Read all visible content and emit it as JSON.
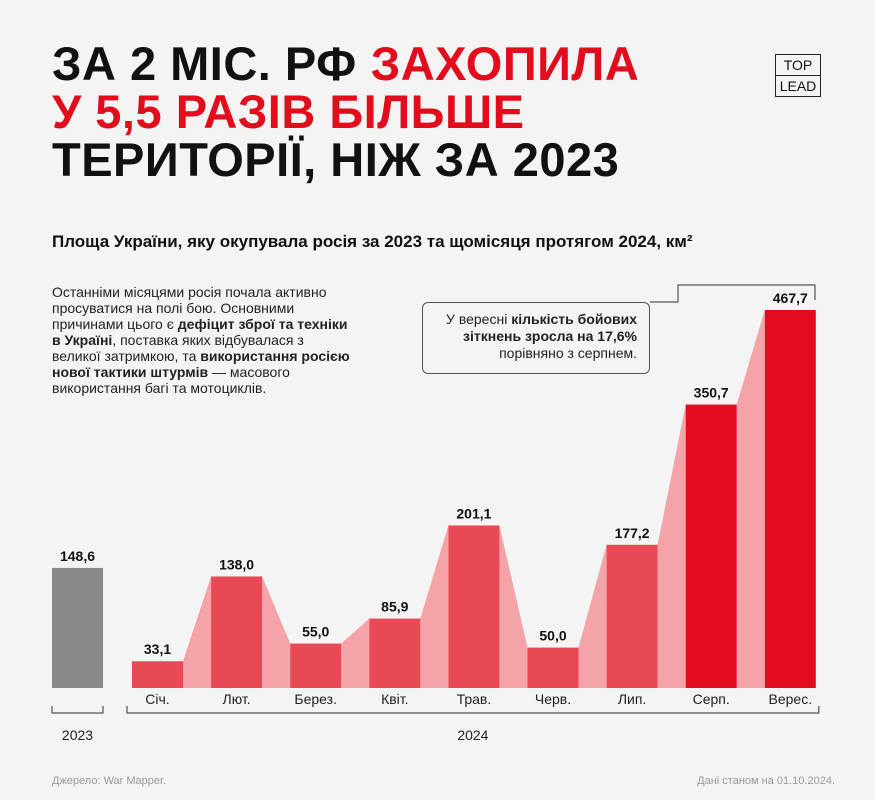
{
  "chart_data": {
    "type": "bar",
    "title_lines": [
      [
        {
          "text": "ЗА 2 МІС. РФ",
          "red": false
        },
        {
          "text": "ЗАХОПИЛА",
          "red": true
        }
      ],
      [
        {
          "text": "У 5,5 РАЗІВ БІЛЬШЕ",
          "red": true
        }
      ],
      [
        {
          "text": "ТЕРИТОРІЇ, НІЖ ЗА 2023",
          "red": false
        }
      ]
    ],
    "logo": [
      "TOP",
      "LEAD"
    ],
    "subtitle": "Площа України, яку окупувала росія за 2023 та щомісяця протягом 2024, км²",
    "paragraph": [
      {
        "text": "Останніми місяцями росія почала активно просуватися на полі бою. Основними причинами цього є ",
        "bold": false
      },
      {
        "text": "дефіцит зброї та техніки в Україні",
        "bold": true
      },
      {
        "text": ", поставка яких відбувалася з великої затримкою, та ",
        "bold": false
      },
      {
        "text": "використання росією нової тактики штурмів",
        "bold": true
      },
      {
        "text": " — масового використання багі та мотоциклів.",
        "bold": false
      }
    ],
    "annotation": [
      {
        "text": "У вересні ",
        "bold": false
      },
      {
        "text": "кількість бойових зіткнень зросла на 17,6%",
        "bold": true
      },
      {
        "text": " порівняно з серпнем.",
        "bold": false
      }
    ],
    "series": [
      {
        "name": "2023",
        "color": "#8a8a8a",
        "categories": [
          null
        ],
        "values": [
          148.6
        ],
        "value_labels": [
          "148,6"
        ]
      },
      {
        "name": "2024",
        "colors": [
          "#e84a55",
          "#e84a55",
          "#e84a55",
          "#e84a55",
          "#e84a55",
          "#e84a55",
          "#e84a55",
          "#e20c1c",
          "#e20c1c"
        ],
        "categories": [
          "Січ.",
          "Лют.",
          "Берез.",
          "Квіт.",
          "Трав.",
          "Черв.",
          "Лип.",
          "Серп.",
          "Верес."
        ],
        "values": [
          33.1,
          138.0,
          55.0,
          85.9,
          201.1,
          50.0,
          177.2,
          350.7,
          467.7
        ],
        "value_labels": [
          "33,1",
          "138,0",
          "55,0",
          "85,9",
          "201,1",
          "50,0",
          "177,2",
          "350,7",
          "467,7"
        ]
      }
    ],
    "source": "Джерело: War Mapper.",
    "date_note": "Дані станом на 01.10.2024."
  }
}
